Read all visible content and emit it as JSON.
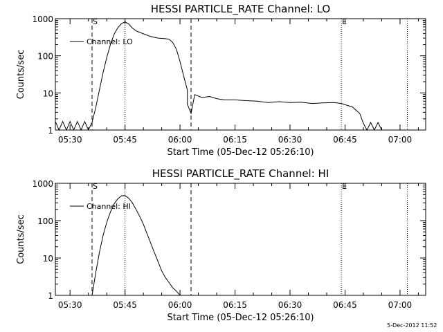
{
  "chart_data": [
    {
      "type": "line",
      "title": "HESSI PARTICLE_RATE Channel: LO",
      "xlabel": "Start Time (05-Dec-12 05:26:10)",
      "ylabel": "Counts/sec",
      "yscale": "log",
      "xlim": [
        "05:26",
        "07:07"
      ],
      "ylim": [
        1,
        1000
      ],
      "xticks": [
        "05:30",
        "05:45",
        "06:00",
        "06:15",
        "06:30",
        "06:45",
        "07:00"
      ],
      "yticks": [
        "1",
        "10",
        "100",
        "1000"
      ],
      "legend": "top-left",
      "series": [
        {
          "name": "Channel: LO",
          "x": [
            "05:26",
            "05:27",
            "05:28",
            "05:29",
            "05:30",
            "05:31",
            "05:32",
            "05:33",
            "05:34",
            "05:35",
            "05:36",
            "05:37",
            "05:38",
            "05:39",
            "05:40",
            "05:41",
            "05:42",
            "05:43",
            "05:44",
            "05:45",
            "05:46",
            "05:47",
            "05:48",
            "05:50",
            "05:52",
            "05:54",
            "05:56",
            "05:57",
            "05:58",
            "05:59",
            "06:00",
            "06:01",
            "06:02",
            "06:02",
            "06:03",
            "06:03",
            "06:04",
            "06:06",
            "06:08",
            "06:10",
            "06:12",
            "06:15",
            "06:18",
            "06:21",
            "06:24",
            "06:27",
            "06:30",
            "06:33",
            "06:36",
            "06:39",
            "06:42",
            "06:44",
            "06:45",
            "06:47",
            "06:49",
            "06:50",
            "06:51",
            "06:52",
            "06:53",
            "06:54",
            "06:55"
          ],
          "values": [
            1.7,
            1,
            1.7,
            1,
            1.7,
            1,
            1.7,
            1,
            1.7,
            1,
            1.6,
            4,
            12,
            35,
            90,
            200,
            380,
            560,
            730,
            820,
            720,
            560,
            470,
            390,
            330,
            300,
            290,
            280,
            230,
            150,
            70,
            28,
            12,
            5,
            2.8,
            2.8,
            9,
            7.5,
            8,
            7,
            6.5,
            6.5,
            6.2,
            6,
            5.5,
            5.8,
            5.5,
            5.6,
            5.2,
            5.4,
            5.5,
            5.2,
            4.8,
            4.2,
            2.8,
            1.5,
            1,
            1.6,
            1,
            1.6,
            1
          ]
        }
      ],
      "vlines": [
        {
          "x": "05:36",
          "label": "S",
          "style": "dashed"
        },
        {
          "x": "05:45",
          "style": "dotted"
        },
        {
          "x": "06:03",
          "style": "dashed"
        },
        {
          "x": "06:44",
          "label": "E",
          "style": "dotted"
        },
        {
          "x": "07:02",
          "style": "dotted"
        }
      ]
    },
    {
      "type": "line",
      "title": "HESSI PARTICLE_RATE Channel: HI",
      "xlabel": "Start Time (05-Dec-12 05:26:10)",
      "ylabel": "Counts/sec",
      "yscale": "log",
      "xlim": [
        "05:26",
        "07:07"
      ],
      "ylim": [
        1,
        1000
      ],
      "xticks": [
        "05:30",
        "05:45",
        "06:00",
        "06:15",
        "06:30",
        "06:45",
        "07:00"
      ],
      "yticks": [
        "1",
        "10",
        "100",
        "1000"
      ],
      "legend": "top-left",
      "series": [
        {
          "name": "Channel: HI",
          "x": [
            "05:36",
            "05:37",
            "05:38",
            "05:39",
            "05:40",
            "05:41",
            "05:42",
            "05:43",
            "05:44",
            "05:45",
            "05:46",
            "05:47",
            "05:48",
            "05:49",
            "05:50",
            "05:51",
            "05:52",
            "05:53",
            "05:54",
            "05:55",
            "05:56",
            "05:57",
            "05:58",
            "05:59",
            "06:00"
          ],
          "values": [
            1,
            4,
            14,
            40,
            90,
            170,
            280,
            380,
            460,
            470,
            400,
            300,
            200,
            130,
            80,
            45,
            25,
            14,
            8,
            4.5,
            3,
            2.2,
            1.6,
            1.3,
            1
          ]
        }
      ],
      "vlines": [
        {
          "x": "05:36",
          "label": "S",
          "style": "dashed"
        },
        {
          "x": "05:45",
          "style": "dotted"
        },
        {
          "x": "06:03",
          "style": "dashed"
        },
        {
          "x": "06:44",
          "label": "E",
          "style": "dotted"
        },
        {
          "x": "07:02",
          "style": "dotted"
        }
      ]
    }
  ],
  "footer": {
    "timestamp": "5-Dec-2012 11:52"
  }
}
